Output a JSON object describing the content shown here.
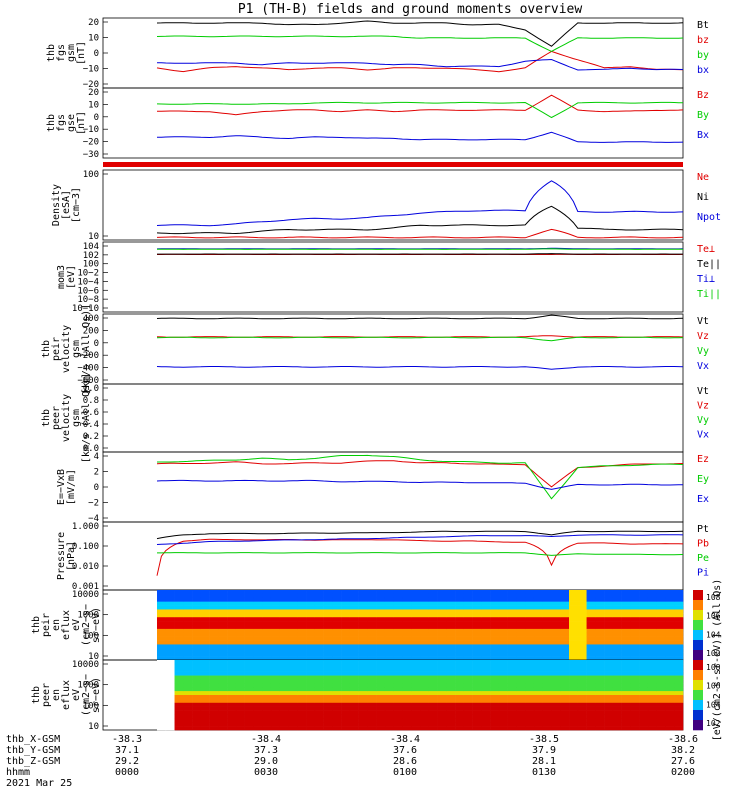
{
  "title": "P1  (TH-B) fields and ground moments overview",
  "footer": {
    "rows": [
      {
        "label": "thb_X-GSM",
        "values": [
          "-38.3",
          "-38.4",
          "-38.4",
          "-38.5",
          "-38.6"
        ]
      },
      {
        "label": "thb_Y-GSM",
        "values": [
          "37.1",
          "37.3",
          "37.6",
          "37.9",
          "38.2"
        ]
      },
      {
        "label": "thb_Z-GSM",
        "values": [
          "29.2",
          "29.0",
          "28.6",
          "28.1",
          "27.6"
        ]
      },
      {
        "label": "hhmm",
        "values": [
          "0000",
          "0030",
          "0100",
          "0130",
          "0200"
        ]
      }
    ],
    "date": "2021 Mar 25"
  },
  "colorbar_label": "[eV/(cm2-s-sr-eV)] (All Qs)",
  "colors": {
    "black": "#000000",
    "red": "#e00000",
    "green": "#00cc00",
    "blue": "#0000dd"
  },
  "chart_data": [
    {
      "type": "line",
      "ylabel": [
        "thb",
        "fgs",
        "gsm",
        "[nT]"
      ],
      "ylim": [
        -20,
        22
      ],
      "yscale": "linear",
      "ticks": [
        "20",
        "10",
        "0",
        "−10",
        "−20"
      ],
      "series": [
        {
          "name": "Bt",
          "color": "black",
          "values": [
            19,
            19,
            19,
            19,
            19,
            18,
            18,
            19,
            20,
            19,
            19,
            19,
            18,
            18,
            15,
            5,
            19,
            19,
            19,
            19,
            19
          ]
        },
        {
          "name": "bz",
          "color": "red",
          "values": [
            -8,
            -10,
            -8,
            -7,
            -8,
            -9,
            -8,
            -8,
            -9,
            -8,
            -8,
            -8,
            -9,
            -10,
            -8,
            2,
            -3,
            -8,
            -7,
            -9,
            -9
          ]
        },
        {
          "name": "by",
          "color": "green",
          "values": [
            11,
            11,
            11,
            11,
            11,
            11,
            11,
            11,
            11,
            11,
            10,
            10,
            10,
            10,
            10,
            2,
            10,
            10,
            10,
            10,
            10
          ]
        },
        {
          "name": "bx",
          "color": "blue",
          "values": [
            -5,
            -5,
            -5,
            -5,
            -6,
            -5,
            -5,
            -5,
            -5,
            -6,
            -6,
            -7,
            -7,
            -7,
            -4,
            -3,
            -9,
            -9,
            -8,
            -9,
            -9
          ]
        }
      ]
    },
    {
      "type": "line",
      "ylabel": [
        "thb",
        "fgs",
        "gse",
        "[nT]"
      ],
      "ylim": [
        -35,
        22
      ],
      "yscale": "linear",
      "ticks": [
        "20",
        "10",
        "0",
        "−10",
        "−20",
        "−30"
      ],
      "series": [
        {
          "name": "Bz",
          "color": "red",
          "values": [
            3,
            3,
            3,
            0,
            3,
            4,
            4,
            3,
            4,
            3,
            4,
            4,
            4,
            4,
            4,
            16,
            4,
            3,
            3,
            4,
            4
          ]
        },
        {
          "name": "By",
          "color": "green",
          "values": [
            9,
            9,
            9,
            9,
            9,
            9,
            10,
            10,
            10,
            10,
            10,
            10,
            10,
            10,
            10,
            -2,
            10,
            10,
            10,
            10,
            10
          ]
        },
        {
          "name": "Bx",
          "color": "blue",
          "values": [
            -18,
            -18,
            -18,
            -17,
            -18,
            -19,
            -18,
            -18,
            -19,
            -19,
            -20,
            -20,
            -20,
            -20,
            -20,
            -14,
            -22,
            -22,
            -22,
            -22,
            -22
          ]
        }
      ]
    },
    {
      "type": "line",
      "ylabel": [
        "Density",
        "[eSA]",
        "[cm−3]"
      ],
      "ylim": [
        7,
        260
      ],
      "yscale": "log",
      "ticks": [
        "100",
        "10"
      ],
      "series": [
        {
          "name": "Ne",
          "color": "red",
          "values": [
            8,
            8,
            8,
            8,
            8,
            8,
            8,
            8,
            8,
            8,
            8,
            8,
            8,
            8,
            8,
            12,
            8,
            8,
            8,
            8,
            8
          ]
        },
        {
          "name": "Ni",
          "color": "black",
          "values": [
            10,
            10,
            10,
            10,
            11,
            12,
            12,
            12,
            12,
            13,
            15,
            15,
            15,
            15,
            15,
            40,
            13,
            12,
            12,
            12,
            12
          ]
        },
        {
          "name": "Npot",
          "color": "blue",
          "values": [
            15,
            15,
            15,
            16,
            18,
            20,
            21,
            21,
            22,
            25,
            28,
            30,
            32,
            32,
            32,
            150,
            30,
            30,
            30,
            30,
            30
          ]
        }
      ]
    },
    {
      "type": "line",
      "ylabel": [
        "mom3",
        "[eV]"
      ],
      "ylim": [
        1e-10,
        40000
      ],
      "yscale": "log",
      "ticks": [
        "104",
        "102",
        "100",
        "10−2",
        "10−4",
        "10−6",
        "10−8",
        "10−10"
      ],
      "series": [
        {
          "name": "Te⊥",
          "color": "red",
          "values": [
            100,
            100,
            100,
            100,
            100,
            100,
            100,
            100,
            100,
            100,
            100,
            100,
            100,
            100,
            100,
            100,
            100,
            100,
            100,
            100,
            100
          ]
        },
        {
          "name": "Te||",
          "color": "black",
          "values": [
            120,
            120,
            120,
            120,
            120,
            120,
            120,
            120,
            120,
            120,
            120,
            120,
            120,
            120,
            120,
            150,
            120,
            120,
            120,
            120,
            120
          ]
        },
        {
          "name": "Ti⊥",
          "color": "blue",
          "values": [
            1500,
            1500,
            1500,
            1500,
            1500,
            1500,
            1500,
            1500,
            1500,
            1500,
            1500,
            1500,
            1500,
            1500,
            1500,
            2000,
            1500,
            1500,
            1500,
            1500,
            1500
          ]
        },
        {
          "name": "Ti||",
          "color": "green",
          "values": [
            1200,
            1200,
            1200,
            1200,
            1200,
            1200,
            1200,
            1200,
            1200,
            1200,
            1200,
            1200,
            1200,
            1200,
            1200,
            1500,
            1200,
            1200,
            1200,
            1200,
            1200
          ]
        }
      ]
    },
    {
      "type": "line",
      "ylabel": [
        "thb",
        "peir",
        "velocity",
        "gsm",
        "[km/s (All Qs)]"
      ],
      "ylim": [
        -650,
        450
      ],
      "yscale": "linear",
      "ticks": [
        "400",
        "200",
        "0",
        "−200",
        "−400",
        "−600"
      ],
      "series": [
        {
          "name": "Vt",
          "color": "black",
          "values": [
            380,
            380,
            380,
            380,
            380,
            380,
            380,
            380,
            380,
            380,
            380,
            380,
            380,
            380,
            380,
            430,
            380,
            380,
            380,
            380,
            380
          ]
        },
        {
          "name": "Vz",
          "color": "red",
          "values": [
            90,
            90,
            90,
            90,
            90,
            90,
            90,
            90,
            90,
            90,
            90,
            90,
            90,
            90,
            90,
            110,
            90,
            90,
            90,
            90,
            90
          ]
        },
        {
          "name": "Vy",
          "color": "green",
          "values": [
            80,
            80,
            80,
            80,
            80,
            80,
            80,
            80,
            80,
            80,
            80,
            80,
            80,
            80,
            80,
            30,
            80,
            80,
            80,
            80,
            80
          ]
        },
        {
          "name": "Vx",
          "color": "blue",
          "values": [
            -380,
            -380,
            -380,
            -380,
            -380,
            -380,
            -380,
            -380,
            -380,
            -380,
            -380,
            -380,
            -380,
            -380,
            -380,
            -420,
            -380,
            -380,
            -380,
            -380,
            -380
          ]
        }
      ]
    },
    {
      "type": "line",
      "ylabel": [
        "thb",
        "peer",
        "velocity",
        "gsm",
        "[km/s (All Qs)]"
      ],
      "ylim": [
        0,
        1.0
      ],
      "yscale": "linear",
      "ticks": [
        "1.0",
        "0.8",
        "0.6",
        "0.4",
        "0.2",
        "0.0"
      ],
      "series": [
        {
          "name": "Vt",
          "color": "black",
          "values": []
        },
        {
          "name": "Vz",
          "color": "red",
          "values": []
        },
        {
          "name": "Vy",
          "color": "green",
          "values": []
        },
        {
          "name": "Vx",
          "color": "blue",
          "values": []
        }
      ]
    },
    {
      "type": "line",
      "ylabel": [
        "E=−VxB",
        "[mV/m]"
      ],
      "ylim": [
        -4,
        5
      ],
      "yscale": "linear",
      "ticks": [
        "4",
        "2",
        "0",
        "−2",
        "−4"
      ],
      "series": [
        {
          "name": "Ez",
          "color": "red",
          "values": [
            3.5,
            3.5,
            3.6,
            3.7,
            3.5,
            3.5,
            3.6,
            3.6,
            3.8,
            3.9,
            3.6,
            3.6,
            3.5,
            3.4,
            3.4,
            0.5,
            3.0,
            3.2,
            3.4,
            3.5,
            3.5
          ]
        },
        {
          "name": "Ey",
          "color": "green",
          "values": [
            3.7,
            3.8,
            3.9,
            4.0,
            4.2,
            4.0,
            4.2,
            4.5,
            4.6,
            4.4,
            4.0,
            3.8,
            3.7,
            3.6,
            3.6,
            -1.0,
            3.0,
            3.2,
            3.3,
            3.4,
            3.4
          ]
        },
        {
          "name": "Ex",
          "color": "blue",
          "values": [
            1.3,
            1.3,
            1.3,
            1.3,
            1.3,
            1.3,
            1.3,
            1.2,
            1.2,
            1.2,
            1.1,
            1.1,
            1.1,
            1.0,
            1.0,
            0.2,
            0.8,
            0.8,
            0.8,
            0.8,
            0.8
          ]
        }
      ]
    },
    {
      "type": "line",
      "ylabel": [
        "Pressure",
        "[nPa]"
      ],
      "ylim": [
        0.0006,
        1.3
      ],
      "yscale": "log",
      "ticks": [
        "1.000",
        "0.100",
        "0.010",
        "0.001"
      ],
      "series": [
        {
          "name": "Pt",
          "color": "black",
          "values": [
            0.2,
            0.3,
            0.35,
            0.35,
            0.35,
            0.36,
            0.37,
            0.38,
            0.38,
            0.4,
            0.42,
            0.45,
            0.45,
            0.45,
            0.45,
            0.3,
            0.45,
            0.45,
            0.45,
            0.45,
            0.45
          ]
        },
        {
          "name": "Pb",
          "color": "red",
          "values": [
            0.003,
            0.15,
            0.18,
            0.18,
            0.17,
            0.18,
            0.17,
            0.17,
            0.18,
            0.17,
            0.16,
            0.15,
            0.15,
            0.14,
            0.13,
            0.01,
            0.12,
            0.12,
            0.11,
            0.11,
            0.11
          ]
        },
        {
          "name": "Pe",
          "color": "green",
          "values": [
            0.04,
            0.04,
            0.04,
            0.04,
            0.04,
            0.04,
            0.04,
            0.04,
            0.04,
            0.04,
            0.04,
            0.04,
            0.04,
            0.04,
            0.04,
            0.03,
            0.035,
            0.035,
            0.033,
            0.033,
            0.033
          ]
        },
        {
          "name": "Pi",
          "color": "blue",
          "values": [
            0.1,
            0.12,
            0.14,
            0.15,
            0.16,
            0.17,
            0.18,
            0.19,
            0.2,
            0.22,
            0.23,
            0.25,
            0.27,
            0.28,
            0.28,
            0.25,
            0.3,
            0.3,
            0.3,
            0.3,
            0.3
          ]
        }
      ]
    },
    {
      "type": "heatmap",
      "ylabel": [
        "thb",
        "peir",
        "en",
        "eflux",
        "eV",
        "(cm2−s−",
        "sr−eV)"
      ],
      "ylim": [
        7,
        25000
      ],
      "yscale": "log",
      "ticks": [
        "10000",
        "1000",
        "100",
        "10"
      ],
      "colorbar": {
        "ticks": [
          "108",
          "106",
          "104",
          "102"
        ]
      }
    },
    {
      "type": "heatmap",
      "ylabel": [
        "thb",
        "peer",
        "en",
        "eflux",
        "eV",
        "(cm2−s−",
        "sr−eV)"
      ],
      "ylim": [
        7,
        25000
      ],
      "yscale": "log",
      "ticks": [
        "10000",
        "1000",
        "100",
        "10"
      ],
      "colorbar": {
        "ticks": [
          "108",
          "106",
          "104",
          "102"
        ]
      }
    }
  ]
}
